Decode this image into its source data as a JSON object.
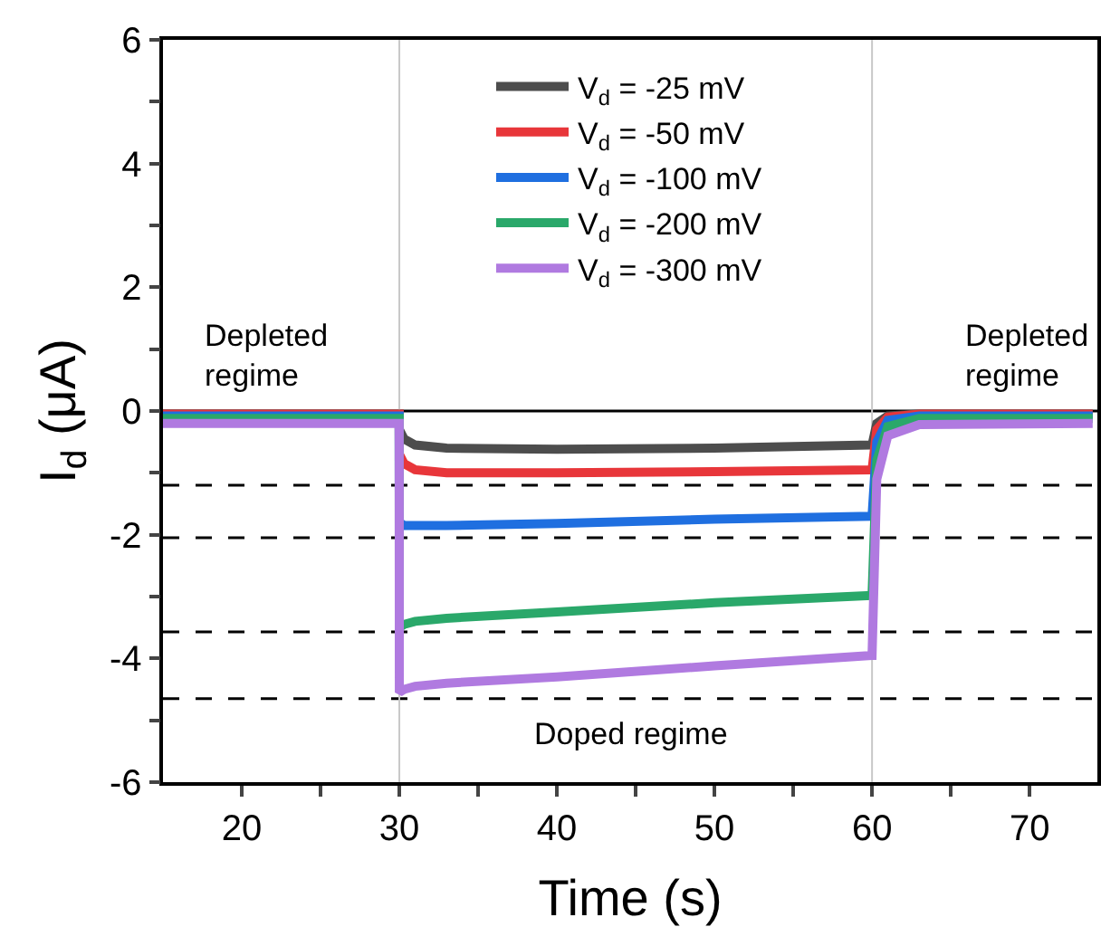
{
  "chart_data": {
    "type": "line",
    "xlabel": "Time (s)",
    "ylabel": "I$_{d}$ (μA)",
    "x": [
      15,
      29.99,
      30,
      30.3,
      31,
      33,
      40,
      50,
      59.99,
      60,
      60.3,
      61,
      63,
      74
    ],
    "series": [
      {
        "name": "V$_{d}$ = -25 mV",
        "color": "#4d4d4d",
        "values": [
          -0.05,
          -0.05,
          -0.3,
          -0.45,
          -0.55,
          -0.6,
          -0.62,
          -0.6,
          -0.55,
          -0.55,
          -0.2,
          -0.08,
          -0.05,
          -0.05
        ]
      },
      {
        "name": "V$_{d}$ = -50 mV",
        "color": "#e8363a",
        "values": [
          -0.05,
          -0.05,
          -0.7,
          -0.85,
          -0.95,
          -1.0,
          -1.0,
          -0.98,
          -0.95,
          -0.95,
          -0.3,
          -0.1,
          -0.05,
          -0.05
        ]
      },
      {
        "name": "V$_{d}$ = -100 mV",
        "color": "#1f6fe0",
        "values": [
          -0.08,
          -0.08,
          -1.8,
          -1.85,
          -1.85,
          -1.85,
          -1.82,
          -1.75,
          -1.7,
          -1.7,
          -0.5,
          -0.15,
          -0.08,
          -0.08
        ]
      },
      {
        "name": "V$_{d}$ = -200 mV",
        "color": "#2aa86a",
        "values": [
          -0.12,
          -0.12,
          -3.5,
          -3.45,
          -3.4,
          -3.35,
          -3.25,
          -3.1,
          -2.98,
          -2.98,
          -0.8,
          -0.25,
          -0.12,
          -0.12
        ]
      },
      {
        "name": "V$_{d}$ = -300 mV",
        "color": "#b07ae0",
        "values": [
          -0.2,
          -0.2,
          -4.55,
          -4.5,
          -4.45,
          -4.4,
          -4.3,
          -4.12,
          -3.95,
          -3.95,
          -1.1,
          -0.4,
          -0.22,
          -0.2
        ]
      }
    ],
    "xlim": [
      15,
      74.3
    ],
    "xticks": [
      20,
      {
        "value": 25,
        "label": null
      },
      30,
      {
        "value": 35,
        "label": null
      },
      40,
      {
        "value": 45,
        "label": null
      },
      50,
      {
        "value": 55,
        "label": null
      },
      60,
      {
        "value": 65,
        "label": null
      },
      70
    ],
    "ylim": [
      -6,
      6
    ],
    "yticks": [
      -6,
      {
        "value": -5,
        "label": null
      },
      -4,
      {
        "value": -3,
        "label": null
      },
      -2,
      {
        "value": -1,
        "label": null
      },
      0,
      {
        "value": 1,
        "label": null
      },
      2,
      {
        "value": 3,
        "label": null
      },
      4,
      {
        "value": 5,
        "label": null
      },
      6
    ],
    "ref_lines": [
      {
        "axis": "y",
        "value": 0,
        "color": "#000000",
        "line_style": "solid"
      },
      {
        "axis": "y",
        "value": -1.2,
        "color": "#000000",
        "line_style": "dashed"
      },
      {
        "axis": "y",
        "value": -2.05,
        "color": "#000000",
        "line_style": "dashed"
      },
      {
        "axis": "y",
        "value": -3.57,
        "color": "#000000",
        "line_style": "dashed"
      },
      {
        "axis": "y",
        "value": -4.65,
        "color": "#000000",
        "line_style": "dashed"
      },
      {
        "axis": "x",
        "value": 30,
        "color": "#c8c8c8",
        "line_style": "solid"
      },
      {
        "axis": "x",
        "value": 60,
        "color": "#c8c8c8",
        "line_style": "solid"
      }
    ],
    "annotations": [
      "Depleted\nregime",
      "Depleted\nregime",
      "Doped regime"
    ],
    "grid": false,
    "legend": "top",
    "marker": "none",
    "line_style": "solid"
  }
}
